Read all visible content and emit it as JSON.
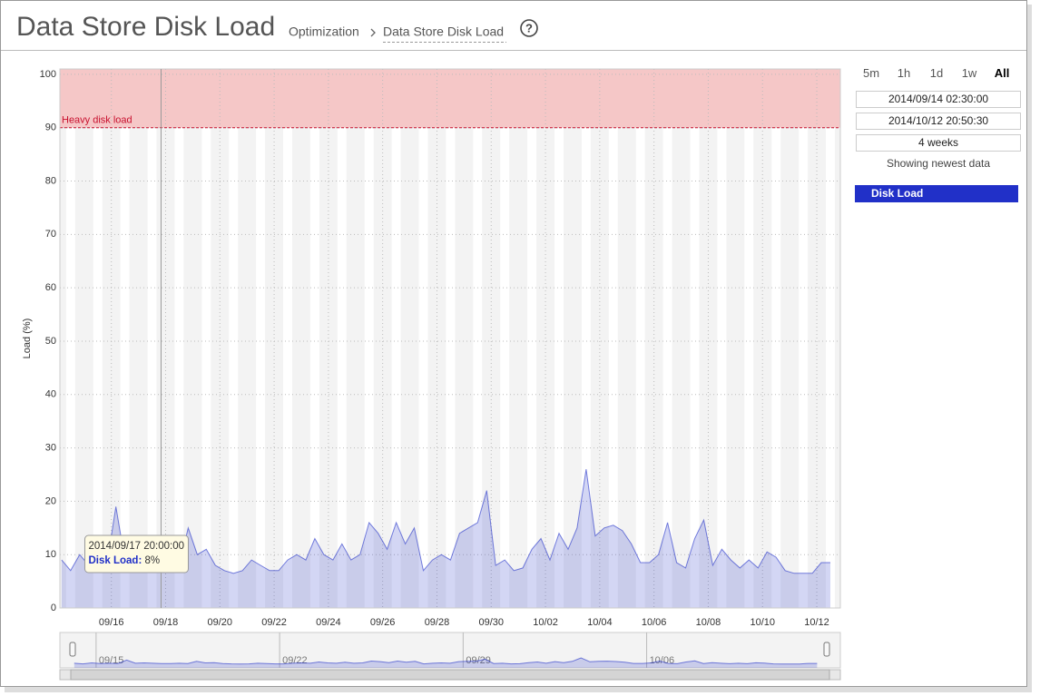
{
  "header": {
    "title": "Data Store Disk Load",
    "breadcrumb": [
      "Optimization",
      "Data Store Disk Load"
    ],
    "help": "?"
  },
  "controls": {
    "ranges": [
      "5m",
      "1h",
      "1d",
      "1w",
      "All"
    ],
    "active": "All",
    "span": "4 weeks",
    "status": "Showing newest data"
  },
  "chart_data": {
    "type": "area",
    "y_label": "Load (%)",
    "xlim": [
      "2014/09/14 02:30:00",
      "2014/10/12 20:50:30"
    ],
    "xticks": [
      {
        "value": "2014/09/16 00:00:00",
        "label": "09/16"
      },
      {
        "value": "2014/09/18 00:00:00",
        "label": "09/18"
      },
      {
        "value": "2014/09/20 00:00:00",
        "label": "09/20"
      },
      {
        "value": "2014/09/22 00:00:00",
        "label": "09/22"
      },
      {
        "value": "2014/09/24 00:00:00",
        "label": "09/24"
      },
      {
        "value": "2014/09/26 00:00:00",
        "label": "09/26"
      },
      {
        "value": "2014/09/28 00:00:00",
        "label": "09/28"
      },
      {
        "value": "2014/09/30 00:00:00",
        "label": "09/30"
      },
      {
        "value": "2014/10/02 00:00:00",
        "label": "10/02"
      },
      {
        "value": "2014/10/04 00:00:00",
        "label": "10/04"
      },
      {
        "value": "2014/10/06 00:00:00",
        "label": "10/06"
      },
      {
        "value": "2014/10/08 00:00:00",
        "label": "10/08"
      },
      {
        "value": "2014/10/10 00:00:00",
        "label": "10/10"
      },
      {
        "value": "2014/10/12 00:00:00",
        "label": "10/12"
      }
    ],
    "ylim": [
      0,
      101
    ],
    "yticks": [
      0,
      10,
      20,
      30,
      40,
      50,
      60,
      70,
      80,
      90,
      100
    ],
    "grid": true,
    "threshold": {
      "value": 90,
      "label": "Heavy disk load"
    },
    "x": [
      "2014/09/14 04:00:00",
      "2014/09/14 12:00:00",
      "2014/09/14 20:00:00",
      "2014/09/15 04:00:00",
      "2014/09/15 12:00:00",
      "2014/09/15 20:00:00",
      "2014/09/16 04:00:00",
      "2014/09/16 12:00:00",
      "2014/09/16 20:00:00",
      "2014/09/17 04:00:00",
      "2014/09/17 12:00:00",
      "2014/09/17 20:00:00",
      "2014/09/18 04:00:00",
      "2014/09/18 12:00:00",
      "2014/09/18 20:00:00",
      "2014/09/19 04:00:00",
      "2014/09/19 12:00:00",
      "2014/09/19 20:00:00",
      "2014/09/20 04:00:00",
      "2014/09/20 12:00:00",
      "2014/09/20 20:00:00",
      "2014/09/21 04:00:00",
      "2014/09/21 12:00:00",
      "2014/09/21 20:00:00",
      "2014/09/22 04:00:00",
      "2014/09/22 12:00:00",
      "2014/09/22 20:00:00",
      "2014/09/23 04:00:00",
      "2014/09/23 12:00:00",
      "2014/09/23 20:00:00",
      "2014/09/24 04:00:00",
      "2014/09/24 12:00:00",
      "2014/09/24 20:00:00",
      "2014/09/25 04:00:00",
      "2014/09/25 12:00:00",
      "2014/09/25 20:00:00",
      "2014/09/26 04:00:00",
      "2014/09/26 12:00:00",
      "2014/09/26 20:00:00",
      "2014/09/27 04:00:00",
      "2014/09/27 12:00:00",
      "2014/09/27 20:00:00",
      "2014/09/28 04:00:00",
      "2014/09/28 12:00:00",
      "2014/09/28 20:00:00",
      "2014/09/29 04:00:00",
      "2014/09/29 12:00:00",
      "2014/09/29 20:00:00",
      "2014/09/30 04:00:00",
      "2014/09/30 12:00:00",
      "2014/09/30 20:00:00",
      "2014/10/01 04:00:00",
      "2014/10/01 12:00:00",
      "2014/10/01 20:00:00",
      "2014/10/02 04:00:00",
      "2014/10/02 12:00:00",
      "2014/10/02 20:00:00",
      "2014/10/03 04:00:00",
      "2014/10/03 12:00:00",
      "2014/10/03 20:00:00",
      "2014/10/04 04:00:00",
      "2014/10/04 12:00:00",
      "2014/10/04 20:00:00",
      "2014/10/05 04:00:00",
      "2014/10/05 12:00:00",
      "2014/10/05 20:00:00",
      "2014/10/06 04:00:00",
      "2014/10/06 12:00:00",
      "2014/10/06 20:00:00",
      "2014/10/07 04:00:00",
      "2014/10/07 12:00:00",
      "2014/10/07 20:00:00",
      "2014/10/08 04:00:00",
      "2014/10/08 12:00:00",
      "2014/10/08 20:00:00",
      "2014/10/09 04:00:00",
      "2014/10/09 12:00:00",
      "2014/10/09 20:00:00",
      "2014/10/10 04:00:00",
      "2014/10/10 12:00:00",
      "2014/10/10 20:00:00",
      "2014/10/11 04:00:00",
      "2014/10/11 12:00:00",
      "2014/10/11 20:00:00",
      "2014/10/12 04:00:00",
      "2014/10/12 12:00:00"
    ],
    "series": [
      {
        "name": "Disk Load",
        "color": "#2130c8",
        "values": [
          9,
          7,
          10,
          8,
          9,
          8,
          19,
          9,
          10,
          9,
          8,
          8,
          9,
          8,
          15,
          10,
          11,
          8,
          7,
          6.5,
          7,
          9,
          8,
          7,
          7,
          9,
          10,
          9,
          13,
          10,
          9,
          12,
          9,
          10,
          16,
          14,
          11,
          16,
          12,
          15,
          7,
          9,
          10,
          9,
          14,
          15,
          16,
          22,
          8,
          9,
          7,
          7.5,
          11,
          13,
          9,
          14,
          11,
          15,
          26,
          13.5,
          15,
          15.5,
          14.5,
          12,
          8.5,
          8.5,
          10,
          16,
          8.5,
          7.5,
          13,
          16.5,
          8,
          11,
          9,
          7.5,
          9,
          7.5,
          10.5,
          9.5,
          7,
          6.5,
          6.5,
          6.5,
          8.5,
          8.5
        ]
      }
    ],
    "tooltip": {
      "x": "2014/09/17 20:00:00",
      "series": "Disk Load:",
      "value": 8,
      "value_label": "8%"
    },
    "navigator": {
      "xticks": [
        {
          "value": "2014/09/15 00:00:00",
          "label": "09/15"
        },
        {
          "value": "2014/09/22 00:00:00",
          "label": "09/22"
        },
        {
          "value": "2014/09/29 00:00:00",
          "label": "09/29"
        },
        {
          "value": "2014/10/06 00:00:00",
          "label": "10/06"
        }
      ]
    }
  }
}
